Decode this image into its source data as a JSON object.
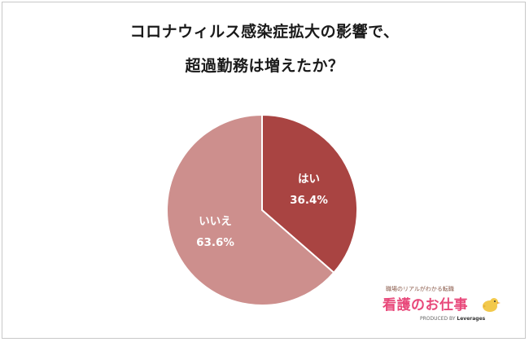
{
  "title_lines": [
    "コロナウィルス感染症拡大の影響で、",
    "超過勤務は増えたか？"
  ],
  "chart_data": {
    "type": "pie",
    "title": "コロナウィルス感染症拡大の影響で、超過勤務は増えたか？",
    "slices": [
      {
        "label": "はい",
        "value": 36.4,
        "display": "36.4%",
        "color": "#a94442"
      },
      {
        "label": "いいえ",
        "value": 63.6,
        "display": "63.6%",
        "color": "#cd8f8d"
      }
    ],
    "start_angle": "12 o'clock, clockwise",
    "legend": "none"
  },
  "logo": {
    "tagline": "職場のリアルがわかる転職",
    "name": "看護のお仕事",
    "byline_prefix": "PRODUCED BY",
    "byline_brand": "Leverages",
    "colors": {
      "name": "#e8487a",
      "bird": "#f2c94c"
    }
  }
}
